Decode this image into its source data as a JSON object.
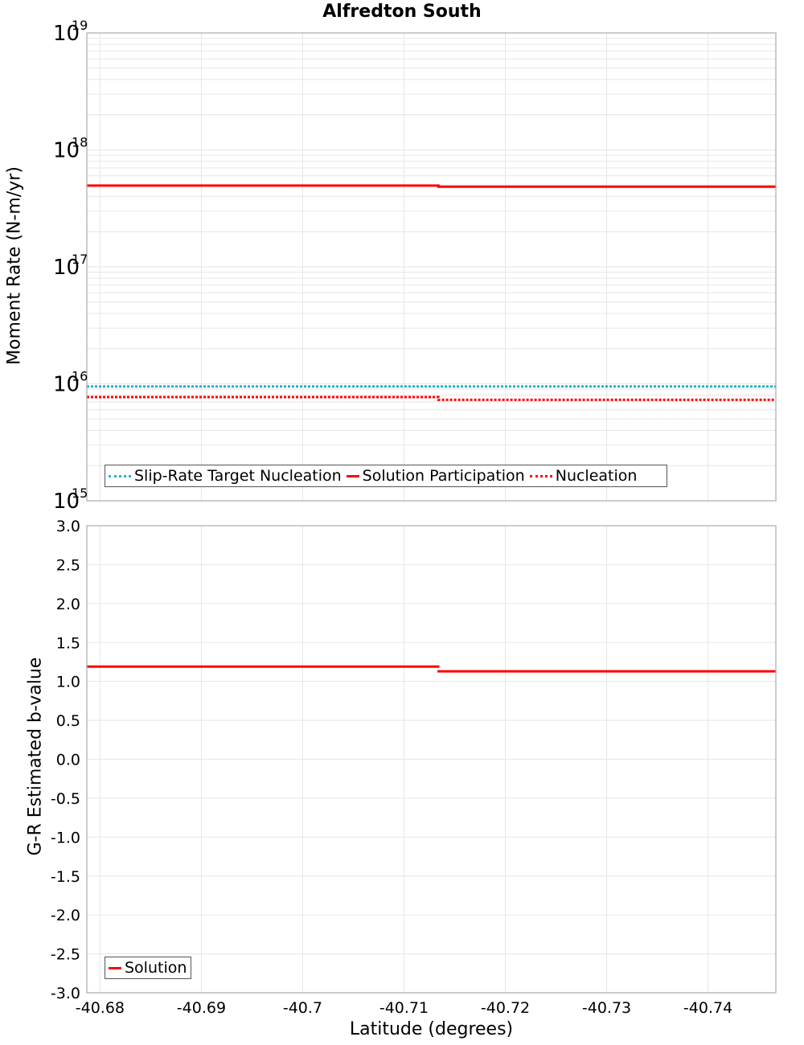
{
  "title": "Alfredton South",
  "colors": {
    "slip_rate_target": "#1fb7c4",
    "solution": "#ff0000",
    "nucleation": "#ff0000",
    "grid": "#e6e6e6",
    "axis": "#aaaaaa"
  },
  "top_panel": {
    "ylabel": "Moment Rate (N-m/yr)",
    "yticks": [
      {
        "base": "10",
        "exp": "19",
        "log": 19
      },
      {
        "base": "10",
        "exp": "18",
        "log": 18
      },
      {
        "base": "10",
        "exp": "17",
        "log": 17
      },
      {
        "base": "10",
        "exp": "16",
        "log": 16
      },
      {
        "base": "10",
        "exp": "15",
        "log": 15
      }
    ],
    "legend": [
      {
        "label": "Slip-Rate Target Nucleation",
        "style": "dotted",
        "color": "#1fb7c4"
      },
      {
        "label": "Solution Participation",
        "style": "solid",
        "color": "#ff0000"
      },
      {
        "label": "Nucleation",
        "style": "dotted",
        "color": "#ff0000"
      }
    ]
  },
  "bottom_panel": {
    "ylabel": "G-R Estimated b-value",
    "yticks": [
      "3.0",
      "2.5",
      "2.0",
      "1.5",
      "1.0",
      "0.5",
      "0.0",
      "-0.5",
      "-1.0",
      "-1.5",
      "-2.0",
      "-2.5",
      "-3.0"
    ],
    "legend": [
      {
        "label": "Solution",
        "style": "solid",
        "color": "#ff0000"
      }
    ]
  },
  "xaxis": {
    "label": "Latitude (degrees)",
    "ticks": [
      "-40.68",
      "-40.69",
      "-40.7",
      "-40.71",
      "-40.72",
      "-40.73",
      "-40.74"
    ]
  },
  "chart_data": [
    {
      "type": "line",
      "title": "Alfredton South",
      "xlabel": "Latitude (degrees)",
      "ylabel": "Moment Rate (N-m/yr)",
      "yscale": "log",
      "ylim": [
        1000000000000000.0,
        1e+19
      ],
      "xlim": [
        -40.6787,
        -40.7467
      ],
      "grid": true,
      "legend_position": "lower-left",
      "series": [
        {
          "name": "Slip-Rate Target Nucleation",
          "style": "dotted",
          "color": "#1fb7c4",
          "x": [
            -40.6787,
            -40.7134,
            -40.7134,
            -40.7467
          ],
          "y": [
            9500000000000000.0,
            9500000000000000.0,
            9500000000000000.0,
            9500000000000000.0
          ]
        },
        {
          "name": "Solution Participation",
          "style": "solid",
          "color": "#ff0000",
          "x": [
            -40.6787,
            -40.7134,
            -40.7134,
            -40.7467
          ],
          "y": [
            4.95e+17,
            4.95e+17,
            4.85e+17,
            4.85e+17
          ]
        },
        {
          "name": "Nucleation",
          "style": "dotted",
          "color": "#ff0000",
          "x": [
            -40.6787,
            -40.7134,
            -40.7134,
            -40.7467
          ],
          "y": [
            7700000000000000.0,
            7700000000000000.0,
            7300000000000000.0,
            7300000000000000.0
          ]
        }
      ]
    },
    {
      "type": "line",
      "xlabel": "Latitude (degrees)",
      "ylabel": "G-R Estimated b-value",
      "ylim": [
        -3.0,
        3.0
      ],
      "xlim": [
        -40.6787,
        -40.7467
      ],
      "grid": true,
      "legend_position": "lower-left",
      "series": [
        {
          "name": "Solution",
          "style": "solid",
          "color": "#ff0000",
          "segments": [
            {
              "x": [
                -40.6787,
                -40.7135
              ],
              "y": [
                1.19,
                1.19
              ]
            },
            {
              "x": [
                -40.7133,
                -40.7467
              ],
              "y": [
                1.13,
                1.13
              ]
            }
          ]
        }
      ]
    }
  ]
}
